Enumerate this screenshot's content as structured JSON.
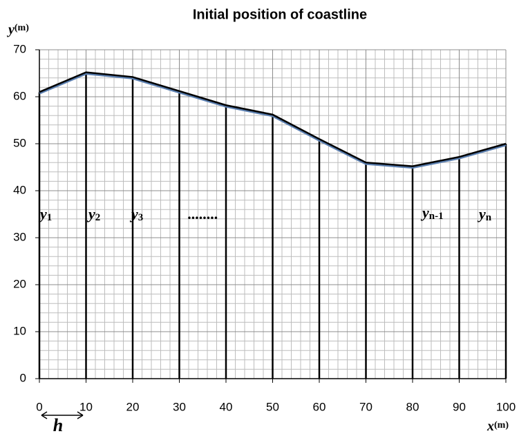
{
  "chart_data": {
    "type": "line",
    "title": "Initial position of coastline",
    "ylabel": {
      "var": "y",
      "unit": "(m)"
    },
    "xlabel": {
      "var": "x",
      "unit": "(m)"
    },
    "x": [
      0,
      10,
      20,
      30,
      40,
      50,
      60,
      70,
      80,
      90,
      100
    ],
    "values": [
      61,
      65.2,
      64.2,
      61.2,
      58.2,
      56.2,
      51,
      46,
      45.2,
      47.2,
      50
    ],
    "color": "#000000",
    "xlim": [
      0,
      100
    ],
    "xticks": [
      0,
      10,
      20,
      30,
      40,
      50,
      60,
      70,
      80,
      90,
      100
    ],
    "ylim": [
      0,
      70
    ],
    "yticks": [
      0,
      10,
      20,
      30,
      40,
      50,
      60,
      70
    ],
    "grid": true,
    "minor_grid_step": 2,
    "annotations": [
      {
        "base": "y",
        "sub": "1"
      },
      {
        "base": "y",
        "sub": "2"
      },
      {
        "base": "y",
        "sub": "3"
      },
      {
        "base": "........",
        "sub": ""
      },
      {
        "base": "y",
        "sub": "n-1"
      },
      {
        "base": "y",
        "sub": "n"
      }
    ],
    "spacing_label": "h"
  }
}
